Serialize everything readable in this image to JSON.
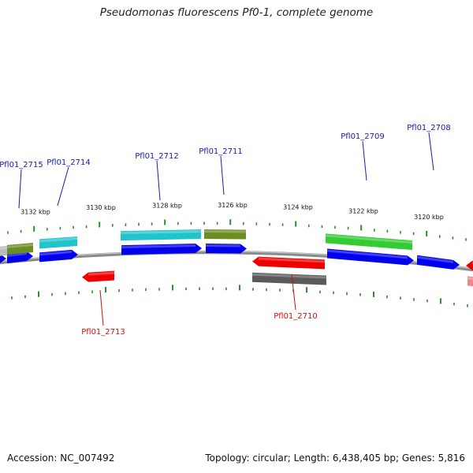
{
  "title": "Pseudomonas fluorescens Pf0-1, complete genome",
  "footer": {
    "accession": "Accession: NC_007492",
    "stats": "Topology: circular; Length: 6,438,405 bp; Genes: 5,816"
  },
  "ruler": {
    "unit": "kbp",
    "ticks": [
      {
        "label": "3132 kbp"
      },
      {
        "label": "3130 kbp"
      },
      {
        "label": "3128 kbp"
      },
      {
        "label": "3126 kbp"
      },
      {
        "label": "3124 kbp"
      },
      {
        "label": "3122 kbp"
      },
      {
        "label": "3120 kbp"
      }
    ]
  },
  "colors": {
    "backbone": "#8a8a8a",
    "forward_label": "#1a1aa6",
    "reverse_label": "#cc1111",
    "tick": "#2e8b2e",
    "blue": "#0000ee",
    "cyan": "#22c4cc",
    "olive": "#6b8e23",
    "green": "#33cc33",
    "red": "#ee0000",
    "gray": "#5a5a5a",
    "pink": "#ee8888",
    "lightgray": "#bbbbbb"
  },
  "labels": [
    {
      "id": "Pfl01_2715",
      "text": "Pfl01_2715",
      "strand": "forward"
    },
    {
      "id": "Pfl01_2714",
      "text": "Pfl01_2714",
      "strand": "forward"
    },
    {
      "id": "Pfl01_2712",
      "text": "Pfl01_2712",
      "strand": "forward"
    },
    {
      "id": "Pfl01_2711",
      "text": "Pfl01_2711",
      "strand": "forward"
    },
    {
      "id": "Pfl01_2709",
      "text": "Pfl01_2709",
      "strand": "forward"
    },
    {
      "id": "Pfl01_2708",
      "text": "Pfl01_2708",
      "strand": "forward"
    },
    {
      "id": "Pfl01_2713",
      "text": "Pfl01_2713",
      "strand": "reverse"
    },
    {
      "id": "Pfl01_2710",
      "text": "Pfl01_2710",
      "strand": "reverse"
    }
  ]
}
